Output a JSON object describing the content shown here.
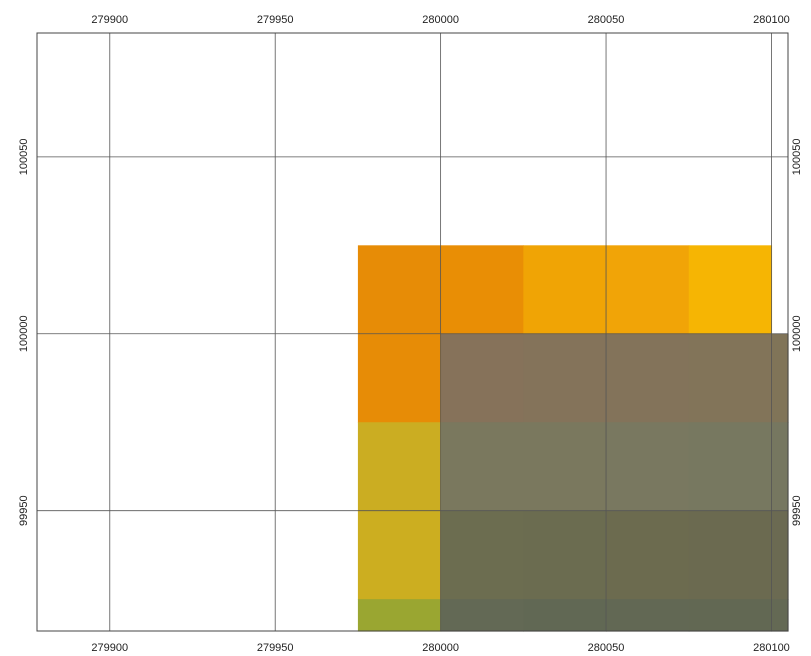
{
  "map": {
    "x_ticks": [
      279900,
      279950,
      280000,
      280050,
      280100
    ],
    "y_ticks": [
      100050,
      100000,
      99950
    ],
    "x_range": [
      279878,
      280105
    ],
    "y_range": [
      99916,
      100085
    ],
    "grid_color": "#555555",
    "frame_color": "#444444",
    "cell_size": 25,
    "raster_layer": {
      "origin_x": 279975,
      "origin_y": 100025,
      "cells": [
        [
          "#e78c06",
          "#e98e05",
          "#f0a405",
          "#f1a407",
          "#f6b503"
        ],
        [
          "#e78c06",
          null,
          null,
          null,
          null
        ],
        [
          "#cbad22",
          null,
          null,
          null,
          null
        ],
        [
          "#ccae20",
          null,
          null,
          null,
          null
        ],
        [
          "#9aa631",
          null,
          null,
          null,
          null
        ]
      ]
    },
    "overlay_layer": {
      "origin_x": 280000,
      "origin_y": 100000,
      "cells": [
        [
          "#86725a",
          "#84735a",
          "#83735a",
          "#827459",
          "#807458"
        ],
        [
          "#7a785e",
          "#7a785e",
          "#797860",
          "#777860",
          "#767760"
        ],
        [
          "#6c6d50",
          "#6b6c50",
          "#6c6b4f",
          "#6b6a50",
          "#6b6a52"
        ],
        [
          "#636955",
          "#616854",
          "#626854",
          "#626853",
          "#646954"
        ]
      ]
    }
  }
}
